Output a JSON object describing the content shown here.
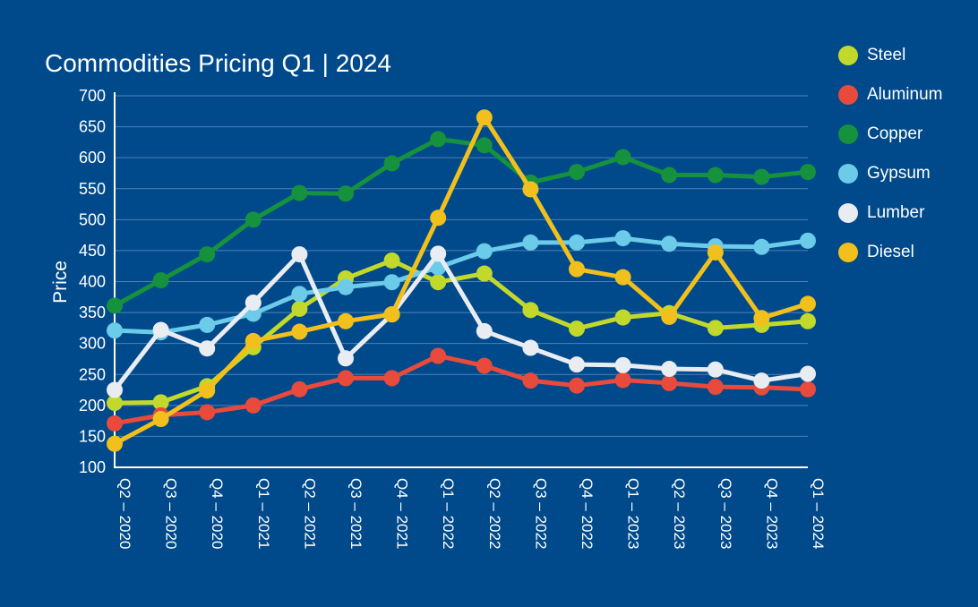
{
  "chart_data": {
    "type": "line",
    "title": "Commodities Pricing Q1 | 2024",
    "xlabel": "",
    "ylabel": "Price",
    "ylim": [
      100,
      700
    ],
    "yticks": [
      100,
      150,
      200,
      250,
      300,
      350,
      400,
      450,
      500,
      550,
      600,
      650,
      700
    ],
    "grid": true,
    "legend_position": "right",
    "categories": [
      "Q2 – 2020",
      "Q3 – 2020",
      "Q4 – 2020",
      "Q1 – 2021",
      "Q2 – 2021",
      "Q3 – 2021",
      "Q4 – 2021",
      "Q1 – 2022",
      "Q2 – 2022",
      "Q3 – 2022",
      "Q4 – 2022",
      "Q1 – 2023",
      "Q2 – 2023",
      "Q3 – 2023",
      "Q4 – 2023",
      "Q1 – 2024"
    ],
    "series": [
      {
        "name": "Steel",
        "color": "#c2d92b",
        "values": [
          204,
          205,
          231,
          294,
          356,
          405,
          434,
          399,
          413,
          354,
          324,
          342,
          349,
          325,
          330,
          336
        ]
      },
      {
        "name": "Aluminum",
        "color": "#e84a3c",
        "values": [
          171,
          184,
          189,
          200,
          226,
          244,
          244,
          280,
          264,
          240,
          232,
          241,
          236,
          230,
          229,
          226
        ]
      },
      {
        "name": "Copper",
        "color": "#16913e",
        "values": [
          361,
          402,
          444,
          500,
          543,
          542,
          591,
          630,
          620,
          560,
          577,
          601,
          572,
          572,
          569,
          577
        ]
      },
      {
        "name": "Gypsum",
        "color": "#6bcbe9",
        "values": [
          321,
          318,
          330,
          348,
          380,
          391,
          399,
          423,
          449,
          463,
          463,
          470,
          461,
          457,
          456,
          466
        ]
      },
      {
        "name": "Lumber",
        "color": "#e9ecf1",
        "values": [
          225,
          322,
          292,
          366,
          444,
          276,
          347,
          445,
          320,
          293,
          266,
          265,
          259,
          258,
          240,
          251
        ]
      },
      {
        "name": "Diesel",
        "color": "#f1c01c",
        "values": [
          138,
          178,
          224,
          304,
          319,
          336,
          347,
          503,
          665,
          549,
          420,
          407,
          343,
          447,
          341,
          364
        ]
      }
    ]
  }
}
